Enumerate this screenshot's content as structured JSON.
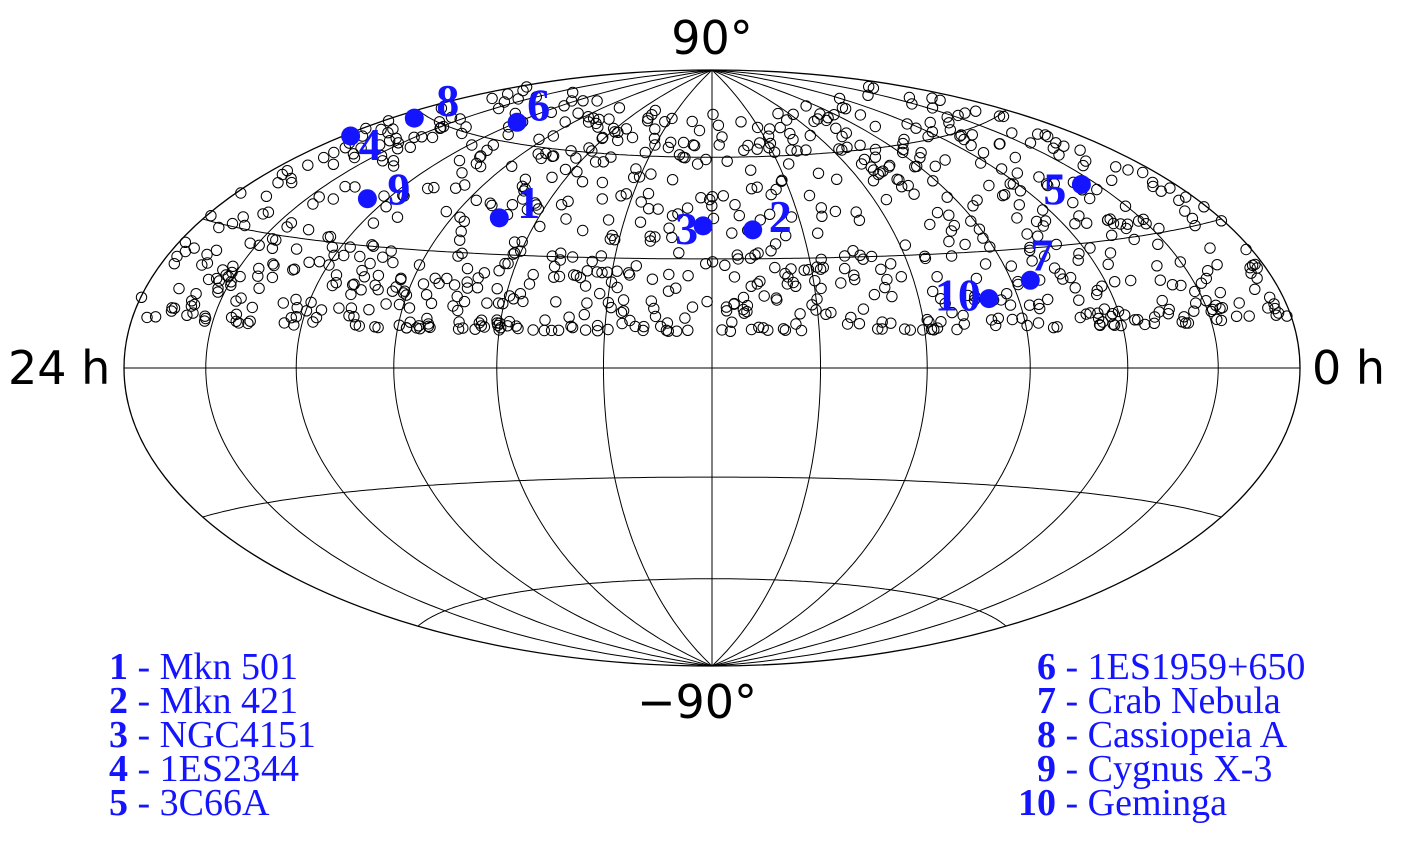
{
  "chart_data": {
    "type": "scatter",
    "projection": "hammer-aitoff",
    "title": "",
    "axis_labels": {
      "north": "90°",
      "south": "−90°",
      "left": "24 h",
      "right": "0 h"
    },
    "ra_range_h": [
      0,
      24
    ],
    "dec_range_deg": [
      -90,
      90
    ],
    "grid": true,
    "parallels_deg": [
      -60,
      -30,
      0,
      30,
      60
    ],
    "meridians_h": [
      0,
      2,
      4,
      6,
      8,
      10,
      12,
      14,
      16,
      18,
      20,
      22,
      24
    ],
    "background_points_color": "#000000",
    "highlight_color": "#1414ff",
    "sources": [
      {
        "id": "1",
        "name": "Mkn 501",
        "ra_h": 16.9,
        "dec": 39.8
      },
      {
        "id": "2",
        "name": "Mkn 421",
        "ra_h": 11.1,
        "dec": 38.2
      },
      {
        "id": "3",
        "name": "NGC4151",
        "ra_h": 12.2,
        "dec": 39.4
      },
      {
        "id": "4",
        "name": "1ES2344",
        "ra_h": 23.8,
        "dec": 51.7
      },
      {
        "id": "5",
        "name": "3C66A",
        "ra_h": 2.4,
        "dec": 43.0
      },
      {
        "id": "6",
        "name": "1ES1959+650",
        "ra_h": 20.0,
        "dec": 65.1
      },
      {
        "id": "7",
        "name": "Crab Nebula",
        "ra_h": 5.6,
        "dec": 22.0
      },
      {
        "id": "8",
        "name": "Cassiopeia A",
        "ra_h": 23.4,
        "dec": 58.8
      },
      {
        "id": "9",
        "name": "Cygnus X-3",
        "ra_h": 20.5,
        "dec": 41.0
      },
      {
        "id": "10",
        "name": "Geminga",
        "ra_h": 6.6,
        "dec": 17.8
      }
    ],
    "background_points": {
      "description_count": 900,
      "ra_range_h": [
        0,
        24
      ],
      "dec_range_deg": [
        10,
        75
      ]
    }
  },
  "legend": {
    "left": [
      {
        "num": "1",
        "name": "Mkn 501"
      },
      {
        "num": "2",
        "name": "Mkn 421"
      },
      {
        "num": "3",
        "name": "NGC4151"
      },
      {
        "num": "4",
        "name": "1ES2344"
      },
      {
        "num": "5",
        "name": "3C66A"
      }
    ],
    "right": [
      {
        "num": "6",
        "name": "1ES1959+650"
      },
      {
        "num": "7",
        "name": "Crab Nebula"
      },
      {
        "num": "8",
        "name": "Cassiopeia A"
      },
      {
        "num": "9",
        "name": "Cygnus X-3"
      },
      {
        "num": "10",
        "name": "Geminga"
      }
    ]
  }
}
